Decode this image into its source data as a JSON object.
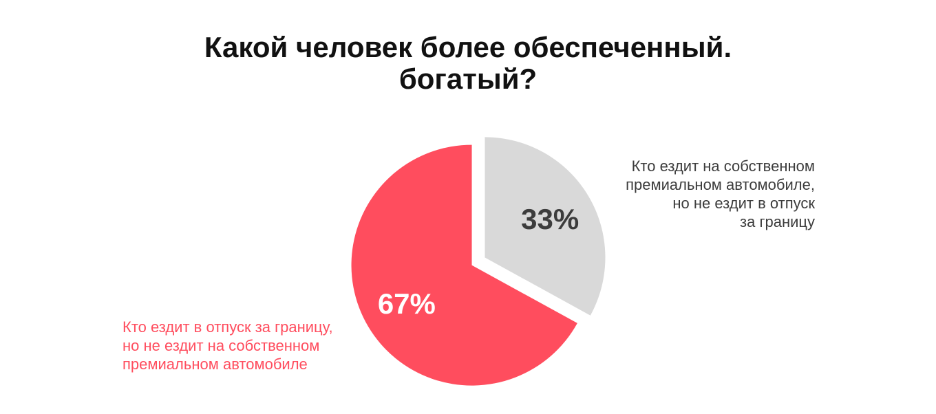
{
  "title": {
    "line1": "Какой человек более обеспеченный.",
    "line2": "богатый?"
  },
  "chart_data": {
    "type": "pie",
    "title": "Какой человек более обеспеченный. богатый?",
    "slices": [
      {
        "label": "Кто ездит на собственном премиальном автомобиле, но не ездит в отпуск за границу",
        "value": 33,
        "value_label": "33%",
        "color": "#d9d9d9",
        "text_color": "#3c3c3c"
      },
      {
        "label": "Кто ездит в отпуск за границу, но не ездит на собственном премиальном автомобиле",
        "value": 67,
        "value_label": "67%",
        "color": "#ff4d5e",
        "text_color": "#ffffff"
      }
    ]
  },
  "labels": {
    "gray": {
      "line1": "Кто ездит на собственном",
      "line2": "премиальном автомобиле,",
      "line3": "но не ездит в отпуск",
      "line4": "за границу"
    },
    "red": {
      "line1": "Кто ездит в отпуск за границу,",
      "line2": "но не ездит на собственном",
      "line3": "премиальном автомобиле"
    }
  }
}
